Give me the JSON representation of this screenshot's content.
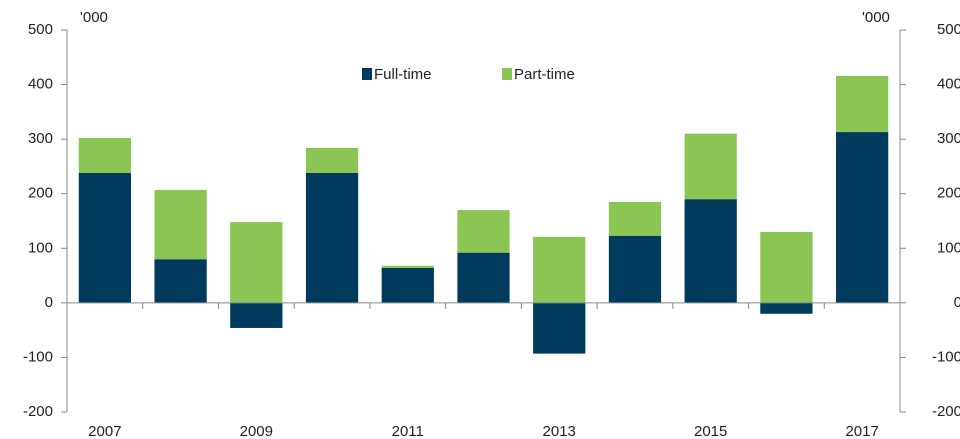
{
  "chart_data": {
    "type": "stacked_bar",
    "y_unit": "'000",
    "y2_unit": "'000",
    "categories": [
      "2007",
      null,
      "2009",
      null,
      "2011",
      null,
      "2013",
      null,
      "2015",
      null,
      "2017"
    ],
    "series": [
      {
        "name": "Full-time",
        "color": "#003a5c",
        "values": [
          238,
          80,
          -46,
          238,
          64,
          92,
          -93,
          123,
          190,
          -20,
          313
        ]
      },
      {
        "name": "Part-time",
        "color": "#8bc654",
        "values": [
          64,
          127,
          148,
          46,
          4,
          78,
          121,
          62,
          120,
          130,
          103
        ]
      }
    ],
    "ylim": [
      -200,
      500
    ],
    "yticks": [
      -200,
      -100,
      0,
      100,
      200,
      300,
      400,
      500
    ],
    "y2lim": [
      -200,
      500
    ],
    "y2ticks": [
      -200,
      -100,
      0,
      100,
      200,
      300,
      400,
      500
    ],
    "legend": "top"
  }
}
